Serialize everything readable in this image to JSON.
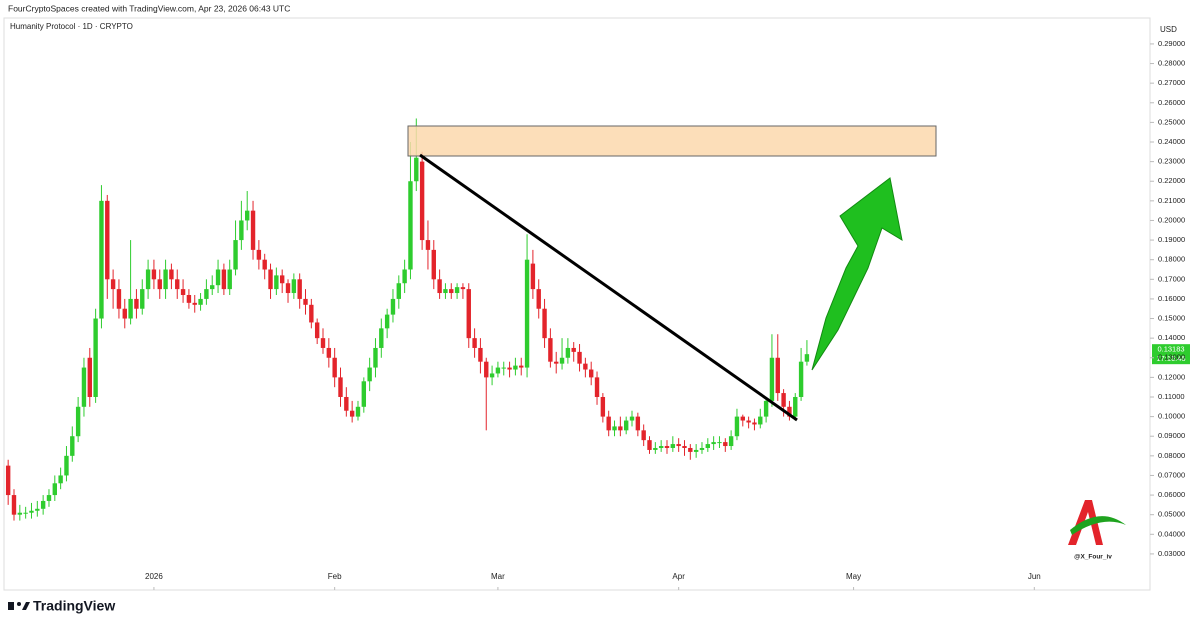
{
  "header": {
    "credit": "FourCryptoSpaces created with TradingView.com, Apr 23, 2026 06:43 UTC"
  },
  "chart_data": {
    "type": "candlestick",
    "title": "Humanity Protocol · 1D · CRYPTO",
    "y_label": "USD",
    "up_color": "#2ecc2e",
    "down_color": "#e3242b",
    "open": [
      0.075,
      0.06,
      0.05,
      0.051,
      0.051,
      0.052,
      0.053,
      0.057,
      0.06,
      0.066,
      0.07,
      0.08,
      0.09,
      0.105,
      0.13,
      0.11,
      0.15,
      0.21,
      0.17,
      0.165,
      0.155,
      0.15,
      0.16,
      0.155,
      0.165,
      0.175,
      0.17,
      0.165,
      0.175,
      0.17,
      0.165,
      0.162,
      0.158,
      0.157,
      0.16,
      0.165,
      0.167,
      0.175,
      0.165,
      0.175,
      0.19,
      0.2,
      0.205,
      0.185,
      0.18,
      0.175,
      0.165,
      0.172,
      0.168,
      0.163,
      0.17,
      0.16,
      0.157,
      0.148,
      0.14,
      0.135,
      0.13,
      0.12,
      0.11,
      0.103,
      0.1,
      0.105,
      0.118,
      0.125,
      0.135,
      0.145,
      0.152,
      0.16,
      0.168,
      0.175,
      0.22,
      0.23,
      0.19,
      0.185,
      0.17,
      0.163,
      0.165,
      0.163,
      0.166,
      0.165,
      0.14,
      0.135,
      0.128,
      0.12,
      0.122,
      0.125,
      0.125,
      0.124,
      0.126,
      0.125,
      0.178,
      0.165,
      0.155,
      0.14,
      0.128,
      0.127,
      0.13,
      0.135,
      0.133,
      0.127,
      0.124,
      0.12,
      0.11,
      0.1,
      0.093,
      0.095,
      0.093,
      0.098,
      0.1,
      0.093,
      0.088,
      0.083,
      0.084,
      0.085,
      0.084,
      0.086,
      0.085,
      0.084,
      0.082,
      0.083,
      0.084,
      0.086,
      0.087,
      0.087,
      0.085,
      0.09,
      0.1,
      0.098,
      0.097,
      0.096,
      0.1,
      0.108,
      0.13,
      0.112,
      0.105,
      0.1,
      0.11,
      0.128
    ],
    "high": [
      0.078,
      0.063,
      0.055,
      0.054,
      0.056,
      0.057,
      0.06,
      0.063,
      0.07,
      0.074,
      0.085,
      0.095,
      0.11,
      0.13,
      0.135,
      0.155,
      0.218,
      0.213,
      0.175,
      0.17,
      0.16,
      0.19,
      0.165,
      0.17,
      0.18,
      0.18,
      0.175,
      0.18,
      0.178,
      0.175,
      0.17,
      0.165,
      0.162,
      0.163,
      0.17,
      0.172,
      0.18,
      0.178,
      0.18,
      0.2,
      0.21,
      0.215,
      0.21,
      0.19,
      0.183,
      0.178,
      0.176,
      0.175,
      0.17,
      0.173,
      0.173,
      0.165,
      0.16,
      0.15,
      0.145,
      0.14,
      0.135,
      0.125,
      0.115,
      0.108,
      0.108,
      0.12,
      0.13,
      0.14,
      0.15,
      0.155,
      0.165,
      0.172,
      0.18,
      0.24,
      0.252,
      0.235,
      0.2,
      0.19,
      0.175,
      0.168,
      0.168,
      0.168,
      0.168,
      0.168,
      0.145,
      0.14,
      0.13,
      0.126,
      0.128,
      0.128,
      0.128,
      0.13,
      0.13,
      0.193,
      0.185,
      0.17,
      0.16,
      0.145,
      0.133,
      0.14,
      0.14,
      0.138,
      0.137,
      0.13,
      0.128,
      0.123,
      0.112,
      0.103,
      0.098,
      0.1,
      0.1,
      0.103,
      0.102,
      0.096,
      0.09,
      0.087,
      0.088,
      0.088,
      0.09,
      0.089,
      0.088,
      0.086,
      0.086,
      0.087,
      0.089,
      0.09,
      0.09,
      0.089,
      0.093,
      0.104,
      0.101,
      0.1,
      0.099,
      0.104,
      0.11,
      0.142,
      0.142,
      0.114,
      0.108,
      0.112,
      0.135,
      0.139
    ],
    "low": [
      0.055,
      0.047,
      0.047,
      0.048,
      0.048,
      0.049,
      0.05,
      0.054,
      0.057,
      0.063,
      0.067,
      0.077,
      0.087,
      0.1,
      0.105,
      0.107,
      0.145,
      0.16,
      0.155,
      0.15,
      0.145,
      0.147,
      0.15,
      0.152,
      0.16,
      0.165,
      0.16,
      0.16,
      0.165,
      0.16,
      0.158,
      0.155,
      0.153,
      0.154,
      0.157,
      0.162,
      0.163,
      0.162,
      0.162,
      0.172,
      0.185,
      0.195,
      0.18,
      0.175,
      0.17,
      0.16,
      0.162,
      0.163,
      0.158,
      0.16,
      0.155,
      0.152,
      0.145,
      0.137,
      0.132,
      0.125,
      0.115,
      0.105,
      0.1,
      0.097,
      0.098,
      0.102,
      0.113,
      0.12,
      0.13,
      0.14,
      0.148,
      0.155,
      0.163,
      0.17,
      0.215,
      0.185,
      0.175,
      0.165,
      0.16,
      0.16,
      0.16,
      0.16,
      0.16,
      0.135,
      0.13,
      0.122,
      0.093,
      0.116,
      0.12,
      0.121,
      0.12,
      0.121,
      0.121,
      0.12,
      0.16,
      0.15,
      0.135,
      0.125,
      0.122,
      0.124,
      0.127,
      0.128,
      0.123,
      0.12,
      0.116,
      0.106,
      0.097,
      0.09,
      0.09,
      0.09,
      0.091,
      0.095,
      0.09,
      0.085,
      0.081,
      0.081,
      0.082,
      0.081,
      0.082,
      0.082,
      0.08,
      0.078,
      0.079,
      0.081,
      0.082,
      0.083,
      0.084,
      0.082,
      0.083,
      0.088,
      0.095,
      0.094,
      0.093,
      0.094,
      0.097,
      0.105,
      0.108,
      0.1,
      0.098,
      0.098,
      0.108,
      0.126
    ],
    "close": [
      0.06,
      0.05,
      0.051,
      0.051,
      0.052,
      0.053,
      0.057,
      0.06,
      0.066,
      0.07,
      0.08,
      0.09,
      0.105,
      0.125,
      0.11,
      0.15,
      0.21,
      0.17,
      0.165,
      0.155,
      0.15,
      0.16,
      0.155,
      0.165,
      0.175,
      0.17,
      0.165,
      0.175,
      0.17,
      0.165,
      0.162,
      0.158,
      0.157,
      0.16,
      0.165,
      0.167,
      0.175,
      0.165,
      0.175,
      0.19,
      0.2,
      0.205,
      0.185,
      0.18,
      0.175,
      0.165,
      0.172,
      0.168,
      0.163,
      0.17,
      0.16,
      0.157,
      0.148,
      0.14,
      0.135,
      0.13,
      0.12,
      0.11,
      0.103,
      0.1,
      0.105,
      0.118,
      0.125,
      0.135,
      0.145,
      0.152,
      0.16,
      0.168,
      0.175,
      0.22,
      0.232,
      0.19,
      0.185,
      0.17,
      0.163,
      0.165,
      0.163,
      0.166,
      0.165,
      0.14,
      0.135,
      0.128,
      0.12,
      0.122,
      0.125,
      0.125,
      0.124,
      0.126,
      0.125,
      0.18,
      0.165,
      0.155,
      0.14,
      0.128,
      0.127,
      0.13,
      0.135,
      0.133,
      0.127,
      0.124,
      0.12,
      0.11,
      0.1,
      0.093,
      0.095,
      0.093,
      0.098,
      0.1,
      0.093,
      0.088,
      0.083,
      0.084,
      0.085,
      0.084,
      0.086,
      0.085,
      0.084,
      0.082,
      0.083,
      0.084,
      0.086,
      0.087,
      0.087,
      0.085,
      0.09,
      0.1,
      0.098,
      0.097,
      0.096,
      0.1,
      0.108,
      0.13,
      0.112,
      0.105,
      0.1,
      0.11,
      0.128,
      0.13183
    ],
    "xlim": [
      -1.4,
      195.5
    ],
    "xticks": [
      {
        "value": 25,
        "label": "2026"
      },
      {
        "value": 56,
        "label": "Feb"
      },
      {
        "value": 84,
        "label": "Mar"
      },
      {
        "value": 115,
        "label": "Apr"
      },
      {
        "value": 145,
        "label": "May"
      },
      {
        "value": 176,
        "label": "Jun"
      }
    ],
    "ylim": [
      0.0116,
      0.3022
    ],
    "yticks": [
      {
        "value": 0.29,
        "label": "0.29000"
      },
      {
        "value": 0.28,
        "label": "0.28000"
      },
      {
        "value": 0.27,
        "label": "0.27000"
      },
      {
        "value": 0.26,
        "label": "0.26000"
      },
      {
        "value": 0.25,
        "label": "0.25000"
      },
      {
        "value": 0.24,
        "label": "0.24000"
      },
      {
        "value": 0.23,
        "label": "0.23000"
      },
      {
        "value": 0.22,
        "label": "0.22000"
      },
      {
        "value": 0.21,
        "label": "0.21000"
      },
      {
        "value": 0.2,
        "label": "0.20000"
      },
      {
        "value": 0.19,
        "label": "0.19000"
      },
      {
        "value": 0.18,
        "label": "0.18000"
      },
      {
        "value": 0.17,
        "label": "0.17000"
      },
      {
        "value": 0.16,
        "label": "0.16000"
      },
      {
        "value": 0.15,
        "label": "0.15000"
      },
      {
        "value": 0.14,
        "label": "0.14000"
      },
      {
        "value": 0.13,
        "label": "0.13000"
      },
      {
        "value": 0.12,
        "label": "0.12000"
      },
      {
        "value": 0.11,
        "label": "0.11000"
      },
      {
        "value": 0.1,
        "label": "0.10000"
      },
      {
        "value": 0.09,
        "label": "0.09000"
      },
      {
        "value": 0.08,
        "label": "0.08000"
      },
      {
        "value": 0.07,
        "label": "0.07000"
      },
      {
        "value": 0.06,
        "label": "0.06000"
      },
      {
        "value": 0.05,
        "label": "0.05000"
      },
      {
        "value": 0.04,
        "label": "0.04000"
      },
      {
        "value": 0.03,
        "label": "0.03000"
      }
    ],
    "countdown": "17:16:46",
    "watermark": "@X_Four_iv",
    "brand": "TradingView"
  }
}
